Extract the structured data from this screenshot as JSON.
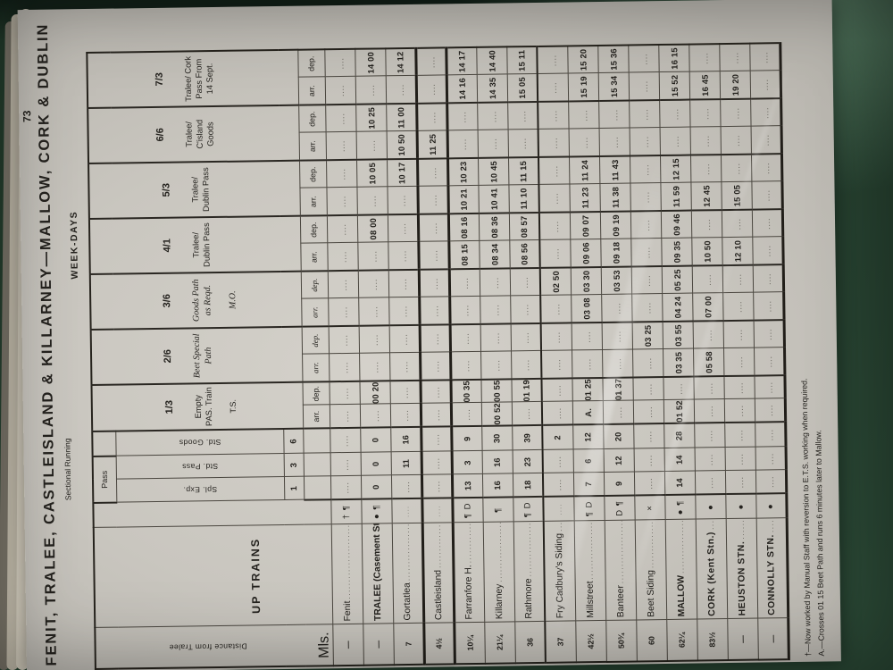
{
  "page_number": "73",
  "title": "FENIT, TRALEE, CASTLEISLAND & KILLARNEY—MALLOW, CORK & DUBLIN",
  "headers": {
    "week_days": "WEEK-DAYS",
    "sectional_running": "Sectional Running",
    "up_trains": "UP TRAINS",
    "distance": "Distance from Tralee",
    "mls": "Mls.",
    "pass_bracket": "Pass",
    "arr": "arr.",
    "dep": "dep.",
    "sectional_cols": [
      {
        "label": "Spl. Exp.",
        "num": "1"
      },
      {
        "label": "Std. Pass",
        "num": "3"
      },
      {
        "label": "Std. Goods",
        "num": "6"
      }
    ]
  },
  "trains": [
    {
      "number": "1/3",
      "desc": "Empty PAS. Train",
      "note": "T.S."
    },
    {
      "number": "2/6",
      "desc": "Beet Special Path",
      "note": ""
    },
    {
      "number": "3/6",
      "desc": "Goods Path as Reqd.",
      "note": "M.O."
    },
    {
      "number": "4/1",
      "desc": "Tralee/ Dublin Pass",
      "note": ""
    },
    {
      "number": "5/3",
      "desc": "Tralee/ Dublin Pass",
      "note": ""
    },
    {
      "number": "6/6",
      "desc": "Tralee/ C'island Goods",
      "note": ""
    },
    {
      "number": "7/3",
      "desc": "Tralee/ Cork Pass From 14 Sept.",
      "note": ""
    }
  ],
  "stations": [
    {
      "mls": "—",
      "name": "Fenit",
      "sym": "† ¶",
      "sec": [
        "",
        "",
        ""
      ],
      "times": [
        [
          "",
          ""
        ],
        [
          "",
          ""
        ],
        [
          "",
          ""
        ],
        [
          "",
          ""
        ],
        [
          "",
          ""
        ],
        [
          "",
          ""
        ],
        [
          "",
          ""
        ]
      ]
    },
    {
      "mls": "—",
      "name": "TRALEE (Casement Stn.)",
      "sym": "● ¶",
      "sec": [
        "0",
        "0",
        "0"
      ],
      "times": [
        [
          "",
          "00 20"
        ],
        [
          "",
          ""
        ],
        [
          "",
          ""
        ],
        [
          "",
          "08 00"
        ],
        [
          "",
          "10 05"
        ],
        [
          "",
          "10 25"
        ],
        [
          "",
          "14 00"
        ]
      ]
    },
    {
      "mls": "7",
      "name": "Gortatlea",
      "sym": "",
      "sec": [
        "",
        "11",
        "16"
      ],
      "times": [
        [
          "",
          ""
        ],
        [
          "",
          ""
        ],
        [
          "",
          ""
        ],
        [
          "",
          ""
        ],
        [
          "",
          "10 17"
        ],
        [
          "10 50",
          "11 00"
        ],
        [
          "",
          "14 12"
        ]
      ]
    },
    {
      "mls": "4½",
      "name": "Castleisland",
      "sym": "",
      "sec": [
        "",
        "",
        ""
      ],
      "times": [
        [
          "",
          ""
        ],
        [
          "",
          ""
        ],
        [
          "",
          ""
        ],
        [
          "",
          ""
        ],
        [
          "",
          ""
        ],
        [
          "11 25",
          ""
        ],
        [
          "",
          ""
        ]
      ]
    },
    {
      "mls": "10¼",
      "name": "Farranfore H.",
      "sym": "¶ D",
      "sec": [
        "13",
        "3",
        "9"
      ],
      "times": [
        [
          "",
          "00 35"
        ],
        [
          "",
          ""
        ],
        [
          "",
          ""
        ],
        [
          "08 15",
          "08 16"
        ],
        [
          "10 21",
          "10 23"
        ],
        [
          "",
          ""
        ],
        [
          "14 16",
          "14 17"
        ]
      ]
    },
    {
      "mls": "21¼",
      "name": "Killarney",
      "sym": "¶",
      "sec": [
        "16",
        "16",
        "30"
      ],
      "times": [
        [
          "00 52",
          "00 55"
        ],
        [
          "",
          ""
        ],
        [
          "",
          ""
        ],
        [
          "08 34",
          "08 36"
        ],
        [
          "10 41",
          "10 45"
        ],
        [
          "",
          ""
        ],
        [
          "14 35",
          "14 40"
        ]
      ]
    },
    {
      "mls": "36",
      "name": "Rathmore",
      "sym": "¶ D",
      "sec": [
        "18",
        "23",
        "39"
      ],
      "times": [
        [
          "",
          "01 19"
        ],
        [
          "",
          ""
        ],
        [
          "",
          ""
        ],
        [
          "08 56",
          "08 57"
        ],
        [
          "11 10",
          "11 15"
        ],
        [
          "",
          ""
        ],
        [
          "15 05",
          "15 11"
        ]
      ]
    },
    {
      "mls": "37",
      "name": "Fry Cadbury's Siding",
      "sym": "",
      "sec": [
        "",
        "",
        "2"
      ],
      "times": [
        [
          "",
          ""
        ],
        [
          "",
          ""
        ],
        [
          "",
          "02 50"
        ],
        [
          "",
          ""
        ],
        [
          "",
          ""
        ],
        [
          "",
          ""
        ],
        [
          "",
          ""
        ]
      ]
    },
    {
      "mls": "42½",
      "name": "Millstreet",
      "sym": "¶ D",
      "sec": [
        "7",
        "6",
        "12"
      ],
      "times": [
        [
          "A.",
          "01 25"
        ],
        [
          "",
          ""
        ],
        [
          "03 08",
          "03 30"
        ],
        [
          "09 06",
          "09 07"
        ],
        [
          "11 23",
          "11 24"
        ],
        [
          "",
          ""
        ],
        [
          "15 19",
          "15 20"
        ]
      ]
    },
    {
      "mls": "50¾",
      "name": "Banteer",
      "sym": "D ¶",
      "sec": [
        "9",
        "12",
        "20"
      ],
      "times": [
        [
          "",
          "01 37"
        ],
        [
          "",
          ""
        ],
        [
          "",
          "03 53"
        ],
        [
          "09 18",
          "09 19"
        ],
        [
          "11 38",
          "11 43"
        ],
        [
          "",
          ""
        ],
        [
          "15 34",
          "15 36"
        ]
      ]
    },
    {
      "mls": "60",
      "name": "Beet Siding",
      "sym": "×",
      "sec": [
        "",
        "",
        ""
      ],
      "times": [
        [
          "",
          ""
        ],
        [
          "",
          "03 25"
        ],
        [
          "",
          ""
        ],
        [
          "",
          ""
        ],
        [
          "",
          ""
        ],
        [
          "",
          ""
        ],
        [
          "",
          ""
        ]
      ]
    },
    {
      "mls": "62¼",
      "name": "MALLOW",
      "sym": "● ¶",
      "sec": [
        "14",
        "14",
        "28"
      ],
      "times": [
        [
          "01 52",
          ""
        ],
        [
          "03 35",
          "03 55"
        ],
        [
          "04 24",
          "05 25"
        ],
        [
          "09 35",
          "09 46"
        ],
        [
          "11 59",
          "12 15"
        ],
        [
          "",
          ""
        ],
        [
          "15 52",
          "16 15"
        ]
      ]
    },
    {
      "mls": "83½",
      "name": "CORK (Kent Stn.)",
      "sym": "●",
      "sec": [
        "",
        "",
        ""
      ],
      "times": [
        [
          "",
          ""
        ],
        [
          "05 58",
          ""
        ],
        [
          "07 00",
          ""
        ],
        [
          "10 50",
          ""
        ],
        [
          "12 45",
          ""
        ],
        [
          "",
          ""
        ],
        [
          "16 45",
          ""
        ]
      ]
    },
    {
      "mls": "—",
      "name": "HEUSTON STN.",
      "sym": "●",
      "sec": [
        "",
        "",
        ""
      ],
      "times": [
        [
          "",
          ""
        ],
        [
          "",
          ""
        ],
        [
          "",
          ""
        ],
        [
          "12 10",
          ""
        ],
        [
          "15 05",
          ""
        ],
        [
          "",
          ""
        ],
        [
          "19 20",
          ""
        ]
      ]
    },
    {
      "mls": "—",
      "name": "CONNOLLY STN.",
      "sym": "●",
      "sec": [
        "",
        "",
        ""
      ],
      "times": [
        [
          "",
          ""
        ],
        [
          "",
          ""
        ],
        [
          "",
          ""
        ],
        [
          "",
          ""
        ],
        [
          "",
          ""
        ],
        [
          "",
          ""
        ],
        [
          "",
          ""
        ]
      ]
    }
  ],
  "footnotes": [
    "†—Now worked by Manual Staff with reversion to E.T.S. working when required.",
    "A.—Crosses 01 15 Beet Path and runs 6 minutes later to Mallow."
  ]
}
